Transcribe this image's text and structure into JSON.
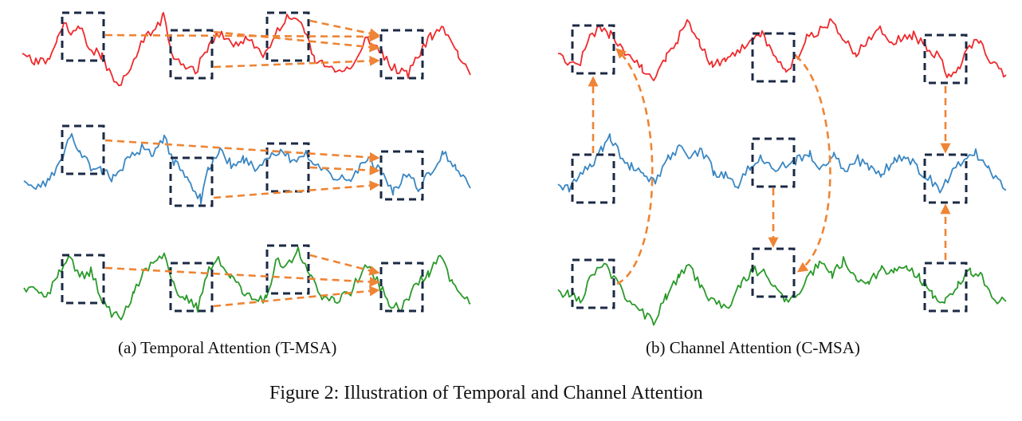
{
  "subfigure_a": {
    "caption": "(a) Temporal Attention (T-MSA)"
  },
  "subfigure_b": {
    "caption": "(b) Channel Attention (C-MSA)"
  },
  "figure_caption": "Figure 2: Illustration of Temporal and Channel Attention",
  "colors": {
    "red_series": "#f0292c",
    "blue_series": "#3a87c3",
    "green_series": "#2a9a2a",
    "box": "#1b2a44",
    "arrow": "#ee8434"
  }
}
